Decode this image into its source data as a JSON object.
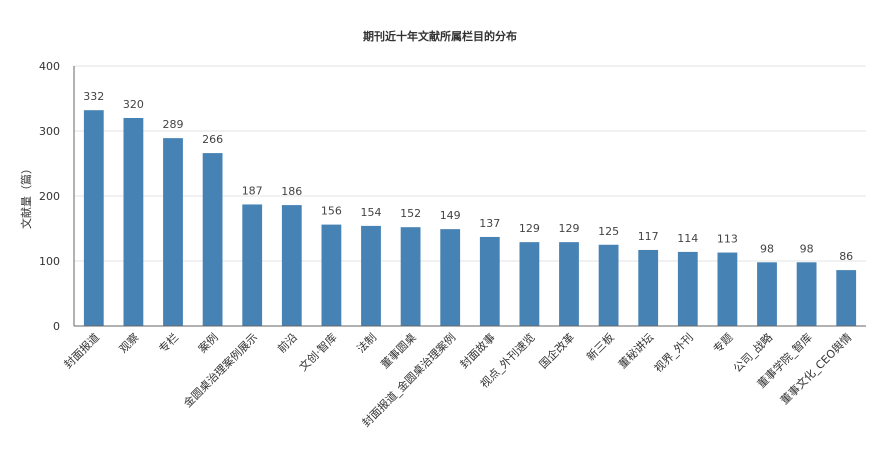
{
  "chart_data": {
    "type": "bar",
    "title": "期刊近十年文献所属栏目的分布",
    "xlabel": "",
    "ylabel": "文献量（篇）",
    "ylim": [
      0,
      400
    ],
    "yticks": [
      0,
      100,
      200,
      300,
      400
    ],
    "grid": true,
    "color": "#4682b4",
    "categories": [
      "封面报道",
      "观察",
      "专栏",
      "案例",
      "金圆桌治理案例展示",
      "前沿",
      "文创·智库",
      "法制",
      "董事圆桌",
      "封面报道_金圆桌治理案例",
      "封面故事",
      "视点_外刊速览",
      "国企改革",
      "新三板",
      "董秘讲坛",
      "视界_外刊",
      "专题",
      "公司_战略",
      "董事学院_智库",
      "董事文化_CEO舆情"
    ],
    "values": [
      332,
      320,
      289,
      266,
      187,
      186,
      156,
      154,
      152,
      149,
      137,
      129,
      129,
      125,
      117,
      114,
      113,
      98,
      98,
      86
    ]
  }
}
